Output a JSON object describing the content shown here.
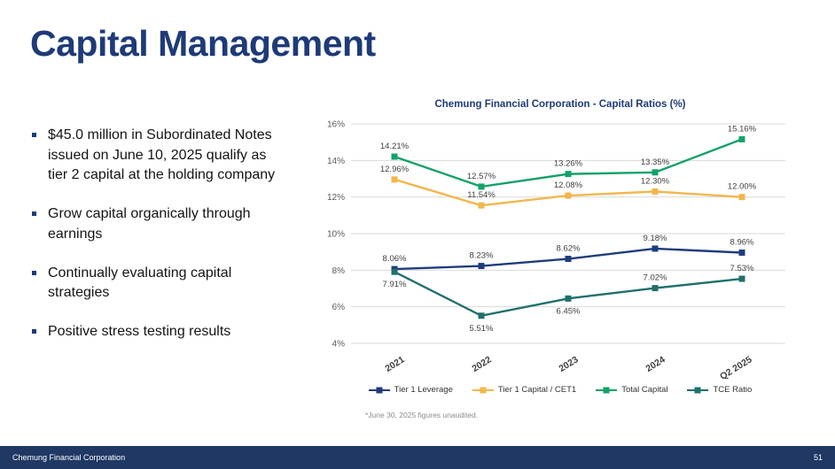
{
  "slide": {
    "title": "Capital Management",
    "accent_color": "#1E3A78",
    "bullets": [
      "$45.0 million in Subordinated Notes issued on June 10, 2025 qualify as tier 2 capital at the holding company",
      "Grow capital organically through earnings",
      "Continually evaluating capital strategies",
      "Positive stress testing results"
    ],
    "footnote": "*June 30, 2025 figures unaudited.",
    "footer": {
      "left": "Chemung Financial Corporation",
      "page": "51",
      "bar_color": "#1F3864"
    }
  },
  "chart_data": {
    "type": "line",
    "title": "Chemung Financial Corporation - Capital Ratios (%)",
    "categories": [
      "2021",
      "2022",
      "2023",
      "2024",
      "Q2 2025"
    ],
    "series": [
      {
        "name": "Tier 1 Leverage",
        "color": "#1F3D7C",
        "values": [
          8.06,
          8.23,
          8.62,
          9.18,
          8.96
        ],
        "label_sides": [
          "above",
          "above",
          "above",
          "above",
          "above"
        ]
      },
      {
        "name": "Tier 1 Capital / CET1",
        "color": "#F2B64B",
        "values": [
          12.96,
          11.54,
          12.08,
          12.3,
          12.0
        ],
        "label_sides": [
          "above",
          "above",
          "above",
          "above",
          "above"
        ]
      },
      {
        "name": "Total Capital",
        "color": "#14A169",
        "values": [
          14.21,
          12.57,
          13.26,
          13.35,
          15.16
        ],
        "label_sides": [
          "above",
          "above",
          "above",
          "above",
          "above"
        ]
      },
      {
        "name": "TCE Ratio",
        "color": "#20706B",
        "values": [
          7.91,
          5.51,
          6.45,
          7.02,
          7.53
        ],
        "label_sides": [
          "below",
          "below",
          "below",
          "above",
          "above"
        ]
      }
    ],
    "ylim": [
      4,
      16
    ],
    "ytick_step": 2,
    "grid": true,
    "legend_position": "bottom"
  }
}
